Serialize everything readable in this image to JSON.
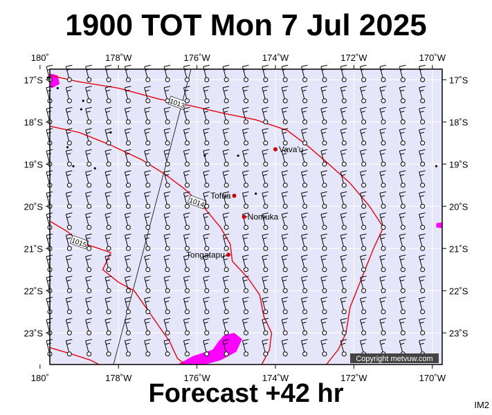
{
  "title": "1900 TOT Mon 7 Jul 2025",
  "subtitle": "Forecast +42 hr",
  "image_code": "IM2",
  "copyright": "Copyright metvuw.com",
  "map": {
    "lon_range": [
      -179.75,
      -169.75
    ],
    "lat_range": [
      -23.75,
      -16.75
    ],
    "lon_ticks": [
      {
        "lon": -180,
        "label": "180˚"
      },
      {
        "lon": -178,
        "label": "178˚W"
      },
      {
        "lon": -176,
        "label": "176˚W"
      },
      {
        "lon": -174,
        "label": "174˚W"
      },
      {
        "lon": -172,
        "label": "172˚W"
      },
      {
        "lon": -170,
        "label": "170˚W"
      }
    ],
    "lat_ticks": [
      {
        "lat": -17,
        "label": "17˚S"
      },
      {
        "lat": -18,
        "label": "18˚S"
      },
      {
        "lat": -19,
        "label": "19˚S"
      },
      {
        "lat": -20,
        "label": "20˚S"
      },
      {
        "lat": -21,
        "label": "21˚S"
      },
      {
        "lat": -22,
        "label": "22˚S"
      },
      {
        "lat": -23,
        "label": "23˚S"
      }
    ],
    "places": [
      {
        "name": "Vava'u",
        "lon": -174.0,
        "lat": -18.65
      },
      {
        "name": "Tofua",
        "lon": -175.05,
        "lat": -19.75
      },
      {
        "name": "Nomuka",
        "lon": -174.8,
        "lat": -20.25
      },
      {
        "name": "Tongatapu",
        "lon": -175.2,
        "lat": -21.15
      }
    ],
    "isobars": [
      {
        "label": "1013",
        "label_lon": -176.5,
        "label_lat": -17.55,
        "points": [
          [
            -179.75,
            -16.9
          ],
          [
            -179,
            -17.05
          ],
          [
            -178,
            -17.2
          ],
          [
            -177,
            -17.45
          ],
          [
            -176.5,
            -17.55
          ],
          [
            -176,
            -17.65
          ],
          [
            -175.3,
            -17.8
          ],
          [
            -174.5,
            -17.95
          ],
          [
            -173.7,
            -18.2
          ],
          [
            -173.2,
            -18.55
          ],
          [
            -172.7,
            -18.95
          ],
          [
            -172.1,
            -19.45
          ],
          [
            -171.6,
            -20.0
          ],
          [
            -171.25,
            -20.5
          ],
          [
            -171.5,
            -21.0
          ],
          [
            -171.8,
            -21.7
          ],
          [
            -172.1,
            -22.4
          ],
          [
            -172.2,
            -23.0
          ],
          [
            -172.4,
            -23.4
          ],
          [
            -172.7,
            -23.75
          ]
        ]
      },
      {
        "label": "1014",
        "label_lon": -176.0,
        "label_lat": -19.9,
        "points": [
          [
            -179.75,
            -18.1
          ],
          [
            -179,
            -18.25
          ],
          [
            -178.2,
            -18.55
          ],
          [
            -177.4,
            -18.9
          ],
          [
            -176.8,
            -19.25
          ],
          [
            -176.3,
            -19.6
          ],
          [
            -175.8,
            -20.05
          ],
          [
            -175.4,
            -20.5
          ],
          [
            -175.15,
            -20.9
          ],
          [
            -175.1,
            -21.3
          ],
          [
            -174.7,
            -21.7
          ],
          [
            -174.4,
            -22.1
          ],
          [
            -174.3,
            -22.6
          ],
          [
            -174.1,
            -23.0
          ],
          [
            -174.15,
            -23.4
          ],
          [
            -174.35,
            -23.75
          ]
        ]
      },
      {
        "label": "1015",
        "label_lon": -179.0,
        "label_lat": -20.85,
        "points": [
          [
            -179.75,
            -20.35
          ],
          [
            -179.3,
            -20.6
          ],
          [
            -179.0,
            -20.85
          ],
          [
            -178.5,
            -21.0
          ],
          [
            -178.2,
            -21.1
          ],
          [
            -178.4,
            -21.5
          ],
          [
            -178.0,
            -21.8
          ],
          [
            -177.6,
            -22.0
          ],
          [
            -177.3,
            -22.4
          ],
          [
            -177.0,
            -22.8
          ],
          [
            -176.7,
            -23.2
          ],
          [
            -176.5,
            -23.6
          ],
          [
            -176.3,
            -23.75
          ]
        ]
      },
      {
        "label": "",
        "label_lon": 0,
        "label_lat": 0,
        "points": [
          [
            -179.75,
            -23.35
          ],
          [
            -179.2,
            -23.5
          ],
          [
            -178.7,
            -23.65
          ],
          [
            -178.5,
            -23.75
          ]
        ]
      }
    ],
    "precip_patches": [
      [
        [
          -179.75,
          -16.85
        ],
        [
          -179.55,
          -16.9
        ],
        [
          -179.5,
          -17.1
        ],
        [
          -179.7,
          -17.2
        ],
        [
          -179.75,
          -17.15
        ]
      ],
      [
        [
          -175.3,
          -23.05
        ],
        [
          -175.05,
          -23.0
        ],
        [
          -174.85,
          -23.15
        ],
        [
          -175.0,
          -23.45
        ],
        [
          -175.4,
          -23.65
        ],
        [
          -175.8,
          -23.75
        ],
        [
          -176.5,
          -23.75
        ],
        [
          -176.1,
          -23.55
        ],
        [
          -175.6,
          -23.4
        ],
        [
          -175.45,
          -23.2
        ]
      ],
      [
        [
          -169.9,
          -20.4
        ],
        [
          -169.75,
          -20.38
        ],
        [
          -169.75,
          -20.52
        ],
        [
          -169.9,
          -20.5
        ]
      ]
    ],
    "islands": [
      {
        "lon": -179.8,
        "lat": -16.95
      },
      {
        "lon": -179.55,
        "lat": -17.2
      },
      {
        "lon": -178.9,
        "lat": -17.5
      },
      {
        "lon": -178.95,
        "lat": -17.7
      },
      {
        "lon": -178.2,
        "lat": -18.25
      },
      {
        "lon": -179.3,
        "lat": -18.6
      },
      {
        "lon": -178.6,
        "lat": -19.1
      },
      {
        "lon": -179.15,
        "lat": -19.05
      },
      {
        "lon": -175.8,
        "lat": -18.8
      },
      {
        "lon": -174.95,
        "lat": -18.8
      },
      {
        "lon": -174.5,
        "lat": -19.7
      },
      {
        "lon": -169.9,
        "lat": -19.05
      }
    ],
    "wind_barbs": {
      "lon_start": -179.75,
      "lon_step": 0.5,
      "cols": 20,
      "lat_start": -17.0,
      "lat_step": -0.5,
      "rows": 14,
      "colors": {
        "staff": "#000000",
        "circle_fill": "#ffffff"
      }
    },
    "colors": {
      "ocean": "#e6e6fa",
      "isobar": "#e8000a",
      "precip": "#ff00ff",
      "grid": "#ffffff",
      "place_dot": "#cc0000",
      "border": "#000000"
    }
  }
}
